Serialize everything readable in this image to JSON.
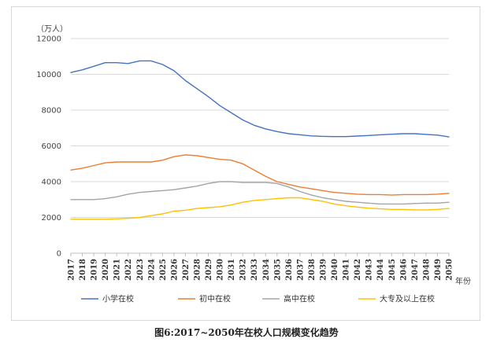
{
  "caption": "图6:2017~2050年在校人口规模变化趋势",
  "chart_data": {
    "type": "line",
    "y_unit": "（万人）",
    "x_unit": "年份",
    "ylim": [
      0,
      12000
    ],
    "y_ticks": [
      0,
      2000,
      4000,
      6000,
      8000,
      10000,
      12000
    ],
    "grid": true,
    "legend_position": "bottom",
    "x": [
      "2017",
      "2018",
      "2019",
      "2020",
      "2021",
      "2022",
      "2023",
      "2024",
      "2025",
      "2026",
      "2027",
      "2028",
      "2029",
      "2030",
      "2031",
      "2032",
      "2033",
      "2034",
      "2035",
      "2036",
      "2037",
      "2038",
      "2039",
      "2040",
      "2041",
      "2042",
      "2043",
      "2044",
      "2045",
      "2046",
      "2047",
      "2048",
      "2049",
      "2050"
    ],
    "series": [
      {
        "name": "小学在校",
        "color": "#4472c4",
        "values": [
          10100,
          10250,
          10450,
          10650,
          10650,
          10600,
          10750,
          10750,
          10550,
          10200,
          9650,
          9200,
          8750,
          8250,
          7850,
          7450,
          7150,
          6950,
          6800,
          6680,
          6620,
          6560,
          6530,
          6520,
          6520,
          6550,
          6580,
          6620,
          6650,
          6680,
          6680,
          6640,
          6600,
          6500
        ]
      },
      {
        "name": "初中在校",
        "color": "#ed7d31",
        "values": [
          4650,
          4750,
          4900,
          5050,
          5100,
          5100,
          5100,
          5100,
          5200,
          5400,
          5500,
          5450,
          5350,
          5250,
          5200,
          5000,
          4650,
          4300,
          4000,
          3850,
          3700,
          3600,
          3500,
          3400,
          3350,
          3300,
          3280,
          3280,
          3250,
          3280,
          3280,
          3280,
          3300,
          3350
        ]
      },
      {
        "name": "高中在校",
        "color": "#a5a5a5",
        "values": [
          3000,
          3000,
          3000,
          3050,
          3150,
          3300,
          3400,
          3450,
          3500,
          3550,
          3650,
          3750,
          3900,
          4000,
          4000,
          3950,
          3950,
          3950,
          3900,
          3700,
          3450,
          3250,
          3100,
          3000,
          2900,
          2850,
          2800,
          2750,
          2750,
          2750,
          2780,
          2800,
          2800,
          2850
        ]
      },
      {
        "name": "大专及以上在校",
        "color": "#ffc000",
        "values": [
          1900,
          1900,
          1900,
          1900,
          1920,
          1950,
          2000,
          2100,
          2200,
          2350,
          2400,
          2500,
          2550,
          2600,
          2700,
          2850,
          2950,
          3000,
          3050,
          3100,
          3100,
          3000,
          2900,
          2750,
          2650,
          2580,
          2520,
          2480,
          2450,
          2450,
          2420,
          2420,
          2450,
          2500
        ]
      }
    ]
  }
}
